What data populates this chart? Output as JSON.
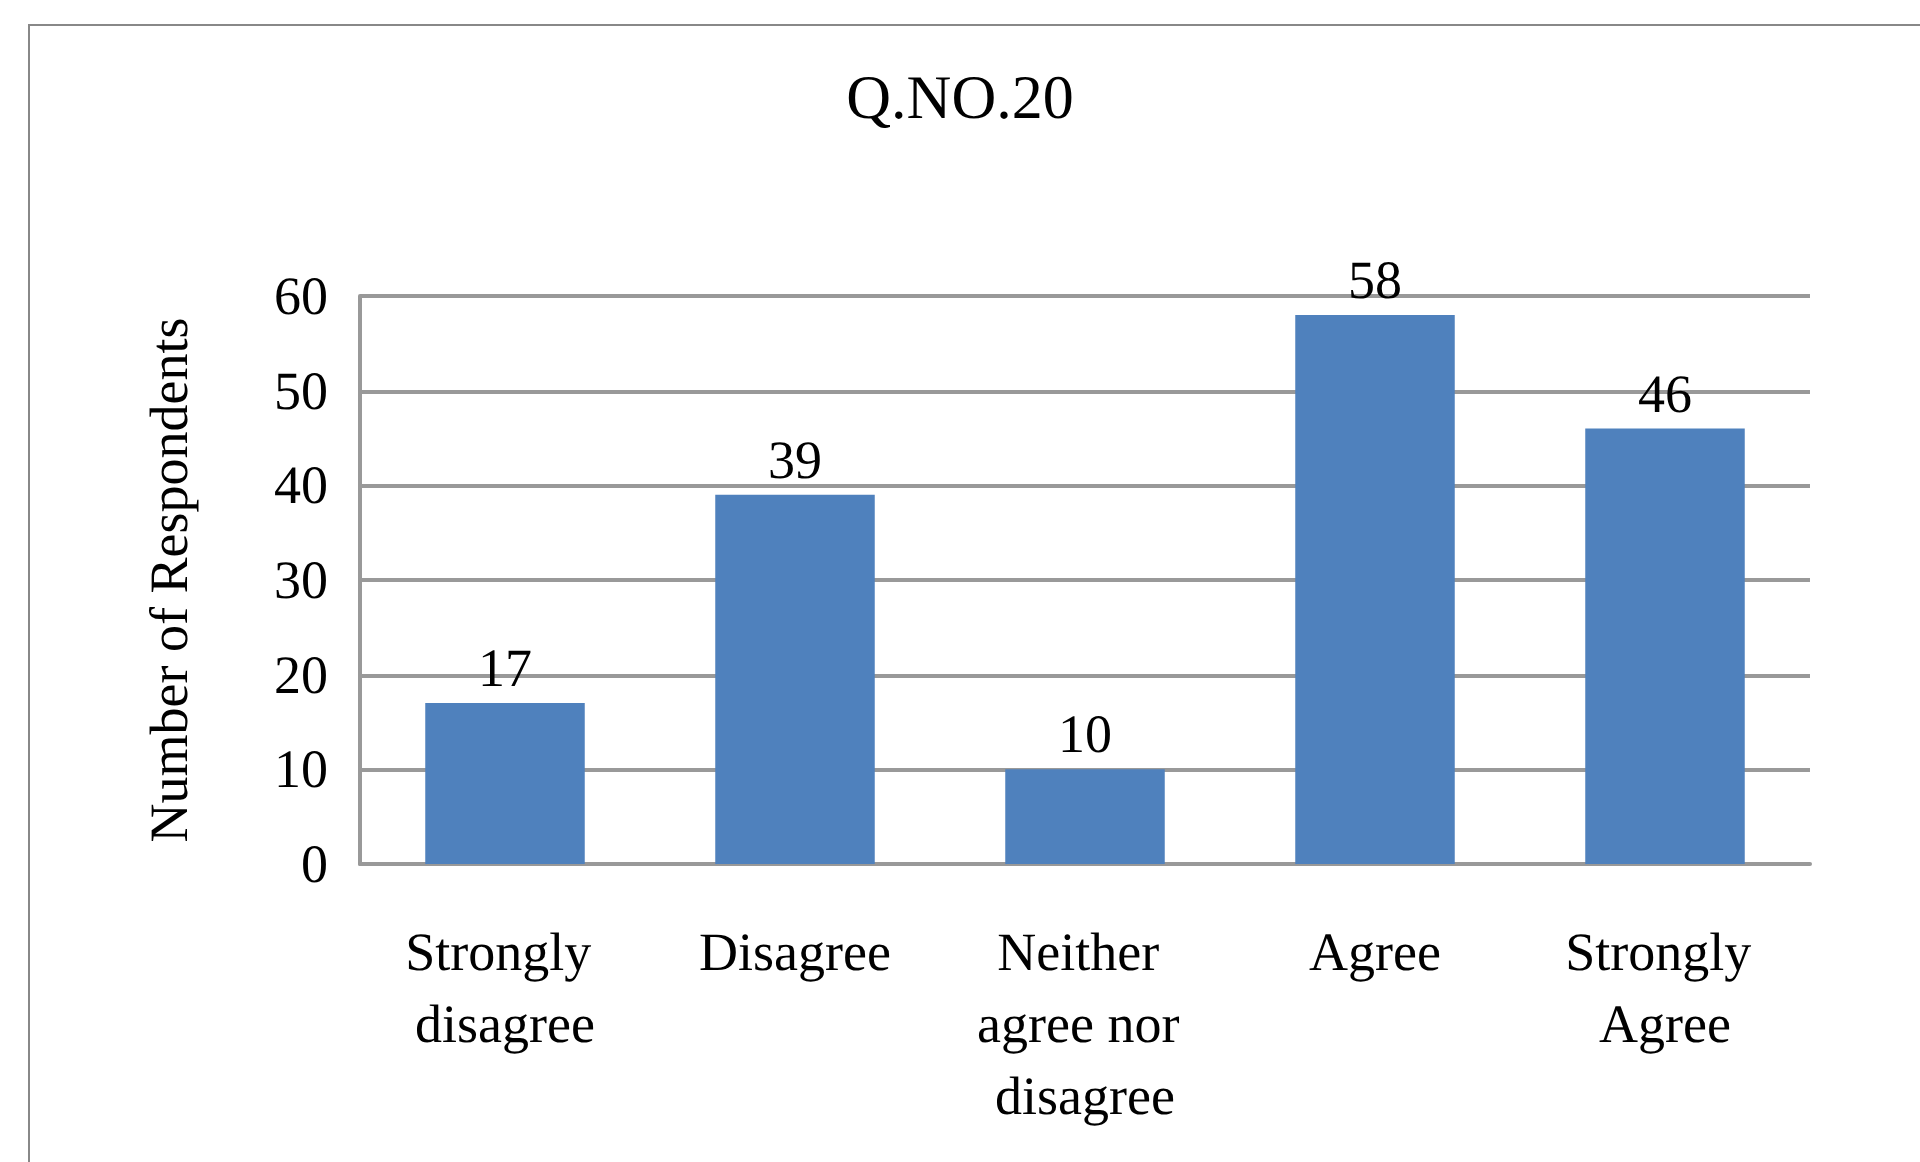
{
  "chart_data": {
    "type": "bar",
    "title": "Q.NO.20",
    "ylabel": "Number of Respondents",
    "categories": [
      "Strongly disagree",
      "Disagree",
      "Neither agree nor disagree",
      "Agree",
      "Strongly Agree"
    ],
    "values": [
      17,
      39,
      10,
      58,
      46
    ],
    "color": "#4f81bd",
    "ylim": [
      0,
      60
    ],
    "yticks": [
      0,
      10,
      20,
      30,
      40,
      50,
      60
    ],
    "grid": "y",
    "data_labels": true
  }
}
